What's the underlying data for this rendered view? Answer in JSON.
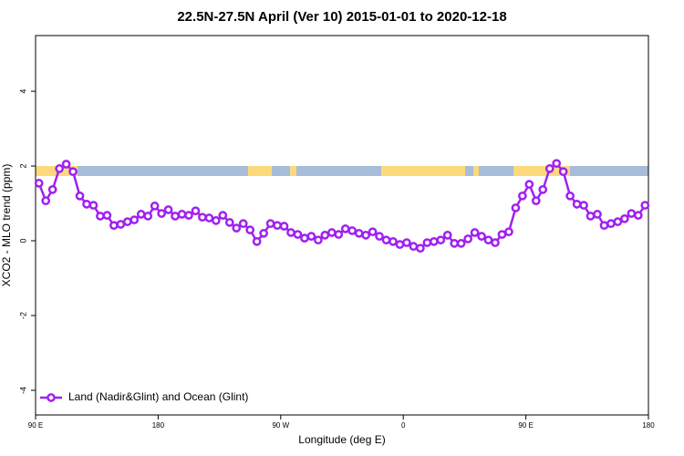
{
  "chart_data": {
    "type": "line",
    "title": "22.5N-27.5N April (Ver 10)   2015-01-01 to 2020-12-18",
    "x_label": "Longitude (deg E)",
    "y_label": "XCO2 - MLO trend (ppm)",
    "xlim": [
      90,
      540
    ],
    "ylim": [
      -4.66,
      5.49
    ],
    "xticks": [
      {
        "value": 90,
        "label": "90 E"
      },
      180,
      {
        "value": 270,
        "label": "90 W"
      },
      {
        "value": 360,
        "label": "0"
      },
      {
        "value": 450,
        "label": "90 E"
      },
      {
        "value": 540,
        "label": "180"
      }
    ],
    "yticks": [
      4,
      2,
      0,
      -2,
      -4
    ],
    "legend": "bottom-left",
    "x": [
      92.5,
      97.5,
      102.5,
      107.5,
      112.5,
      117.5,
      122.5,
      127.5,
      132.5,
      137.5,
      142.5,
      147.5,
      152.5,
      157.5,
      162.5,
      167.5,
      172.5,
      177.5,
      182.5,
      187.5,
      192.5,
      197.5,
      202.5,
      207.5,
      212.5,
      217.5,
      222.5,
      227.5,
      232.5,
      237.5,
      242.5,
      247.5,
      252.5,
      257.5,
      262.5,
      267.5,
      272.5,
      277.5,
      282.5,
      287.5,
      292.5,
      297.5,
      302.5,
      307.5,
      312.5,
      317.5,
      322.5,
      327.5,
      332.5,
      337.5,
      342.5,
      347.5,
      352.5,
      357.5,
      362.5,
      367.5,
      372.5,
      377.5,
      382.5,
      387.5,
      392.5,
      397.5,
      402.5,
      407.5,
      412.5,
      417.5,
      422.5,
      427.5,
      432.5,
      437.5,
      442.5,
      447.5,
      452.5,
      457.5,
      462.5,
      467.5,
      472.5,
      477.5,
      482.5,
      487.5,
      492.5,
      497.5,
      502.5,
      507.5,
      512.5,
      517.5,
      522.5,
      527.5,
      532.5,
      537.5
    ],
    "series": [
      {
        "name": "Land (Nadir&Glint) and Ocean (Glint)",
        "color": "#a020f0",
        "values": [
          1.54,
          1.07,
          1.37,
          1.93,
          2.05,
          1.85,
          1.2,
          0.98,
          0.95,
          0.66,
          0.68,
          0.41,
          0.44,
          0.51,
          0.56,
          0.71,
          0.66,
          0.93,
          0.73,
          0.83,
          0.66,
          0.71,
          0.68,
          0.8,
          0.63,
          0.61,
          0.54,
          0.68,
          0.49,
          0.34,
          0.46,
          0.29,
          -0.02,
          0.2,
          0.46,
          0.41,
          0.39,
          0.22,
          0.17,
          0.07,
          0.12,
          0.02,
          0.15,
          0.22,
          0.17,
          0.32,
          0.27,
          0.2,
          0.15,
          0.24,
          0.12,
          0.02,
          -0.02,
          -0.1,
          -0.05,
          -0.15,
          -0.2,
          -0.05,
          -0.02,
          0.02,
          0.15,
          -0.07,
          -0.07,
          0.05,
          0.22,
          0.12,
          0.02,
          -0.05,
          0.17,
          0.24,
          0.88,
          1.2,
          1.51,
          1.07,
          1.37,
          1.93,
          2.07,
          1.85,
          1.2,
          0.98,
          0.95,
          0.66,
          0.71,
          0.41,
          0.46,
          0.51,
          0.59,
          0.73,
          0.68,
          0.95
        ]
      }
    ]
  }
}
